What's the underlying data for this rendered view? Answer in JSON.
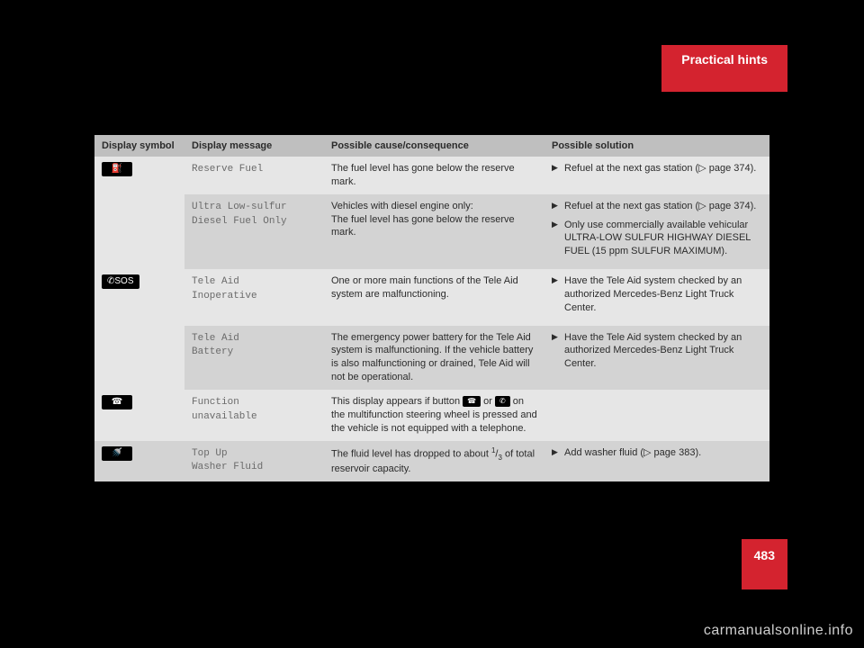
{
  "header": {
    "tab": "Practical hints"
  },
  "columns": {
    "symbol": "Display symbol",
    "message": "Display message",
    "cause": "Possible cause/consequence",
    "solution": "Possible solution"
  },
  "rows": [
    {
      "shade": "light",
      "symbolShow": true,
      "symbol": "⛽",
      "message": "Reserve Fuel",
      "cause": "The fuel level has gone below the reserve mark.",
      "solutions": [
        "Refuel at the next gas station (▷ page 374)."
      ]
    },
    {
      "shade": "dark",
      "symbolShow": false,
      "message": "Ultra Low-sulfur\nDiesel Fuel Only",
      "cause": "Vehicles with diesel engine only:\nThe fuel level has gone below the reserve mark.",
      "solutions": [
        "Refuel at the next gas station (▷ page 374).",
        "Only use commercially available vehicular ULTRA-LOW SULFUR HIGHWAY DIESEL FUEL (15 ppm SULFUR MAXIMUM)."
      ]
    },
    {
      "shade": "light",
      "symbolShow": true,
      "symbol": "✆SOS",
      "message": "Tele Aid\nInoperative",
      "cause": "One or more main functions of the Tele Aid system are malfunctioning.",
      "solutions": [
        "Have the Tele Aid system checked by an authorized Mercedes-Benz Light Truck Center."
      ]
    },
    {
      "shade": "dark",
      "symbolShow": false,
      "message": "Tele Aid\nBattery",
      "cause": "The emergency power battery for the Tele Aid system is malfunctioning. If the vehicle battery is also malfunctioning or drained, Tele Aid will not be operational.",
      "solutions": [
        "Have the Tele Aid system checked by an authorized Mercedes-Benz Light Truck Center."
      ]
    },
    {
      "shade": "light",
      "symbolShow": true,
      "symbol": "☎",
      "message": "Function\nunavailable",
      "causePre": "This display appears if button ",
      "causeMid": " or ",
      "causePost": " on the multifunction steering wheel is pressed and the vehicle is not equipped with a telephone.",
      "icon1": "☎",
      "icon2": "✆",
      "solutions": []
    },
    {
      "shade": "dark",
      "symbolShow": true,
      "symbol": "🚿",
      "message": "Top Up\nWasher Fluid",
      "causePre": "The fluid level has dropped to about ",
      "fracTop": "1",
      "fracBot": "3",
      "causePost2": " of total reservoir capacity.",
      "solutions": [
        "Add washer fluid (▷ page 383)."
      ]
    }
  ],
  "pageNumber": "483",
  "watermark": "carmanualsonline.info"
}
